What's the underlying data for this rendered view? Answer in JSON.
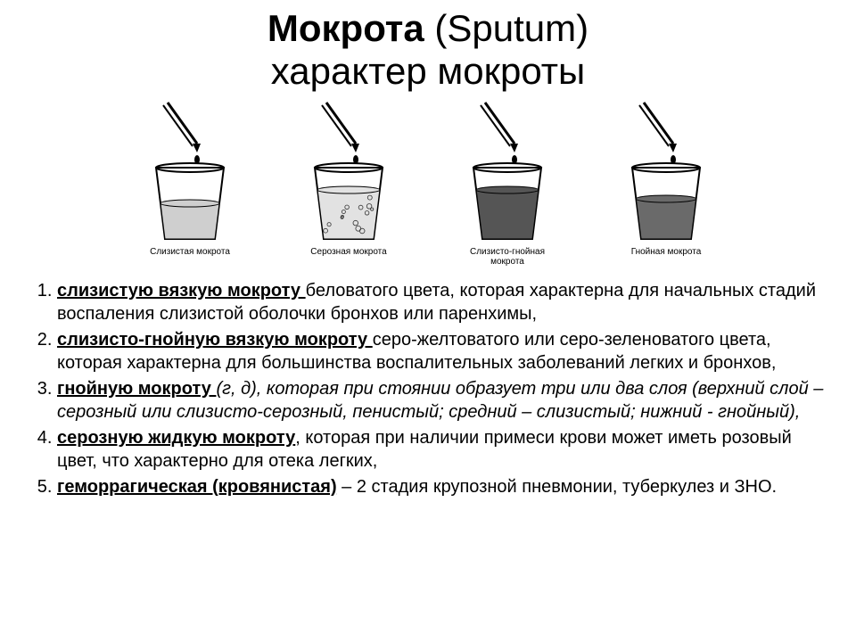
{
  "title_bold": "Мокрота",
  "title_paren": "(Sputum)",
  "title_line2": "характер мокроты",
  "diagrams": [
    {
      "caption": "Слизистая мокрота",
      "fill_height": 40,
      "fill_color": "#cfcfcf",
      "bubbles": false
    },
    {
      "caption": "Серозная мокрота",
      "fill_height": 55,
      "fill_color": "#e2e2e2",
      "bubbles": true
    },
    {
      "caption": "Слизисто-гнойная мокрота",
      "fill_height": 55,
      "fill_color": "#555555",
      "bubbles": false
    },
    {
      "caption": "Гнойная мокрота",
      "fill_height": 45,
      "fill_color": "#6a6a6a",
      "bubbles": false
    }
  ],
  "items": [
    {
      "term": "слизистую вязкую мокроту ",
      "rest": "беловатого цвета, которая характерна для начальных стадий воспаления слизистой оболочки бронхов или паренхимы,"
    },
    {
      "term": "слизисто-гнойную вязкую мокроту ",
      "rest": "серо-желтоватого или серо-зеленоватого цвета, которая характерна для большинства воспалительных заболеваний легких и бронхов,"
    },
    {
      "term": "гнойную мокроту ",
      "rest_italic": "(г, д), которая при стоянии образует три или два слоя (верхний слой – серозный или слизисто-серозный, пенистый; средний – слизистый; нижний - гнойный),"
    },
    {
      "term": "серозную жидкую мокроту",
      "rest": ", которая при наличии примеси крови может иметь розовый цвет, что характерно для отека легких,"
    },
    {
      "term": "геморрагическая (кровянистая)",
      "rest": " – 2 стадия крупозной пневмонии, туберкулез и ЗНО."
    }
  ],
  "colors": {
    "stroke": "#000000",
    "bg": "#ffffff"
  }
}
